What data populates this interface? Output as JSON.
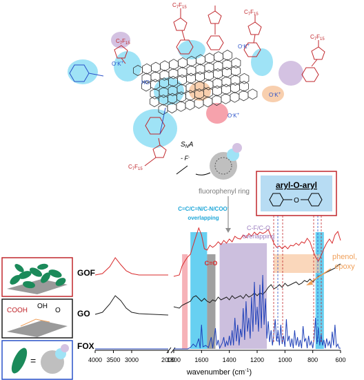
{
  "chart_data": {
    "type": "line",
    "xlabel_main": "wavenumber (cm",
    "xlabel_sup": "-1",
    "xlabel_close": ")",
    "x_ticks_left": [
      4000,
      3500,
      3000,
      2000
    ],
    "x_ticks_right": [
      1800,
      1600,
      1400,
      1200,
      1000,
      800,
      600
    ],
    "series": [
      {
        "name": "GOF",
        "color": "#d8282a"
      },
      {
        "name": "GO",
        "color": "#1a1a1a"
      },
      {
        "name": "FOX",
        "color": "#1d3fb8"
      }
    ],
    "bands": [
      {
        "label": "C=O",
        "from": 1740,
        "to": 1700,
        "color": "#f4a5ab"
      },
      {
        "label": "C=C/C=N/C-N/COO",
        "label_sup": "-",
        "label2": "overlapping",
        "from": 1680,
        "to": 1560,
        "color": "#4cc8ef"
      },
      {
        "label": "",
        "from": 1560,
        "to": 1500,
        "color": "#8f8f8f"
      },
      {
        "label": "C-F/C-O",
        "label2": "overlapping",
        "from": 1470,
        "to": 1130,
        "color": "#c3b4d8"
      },
      {
        "label": "",
        "from": 780,
        "to": 720,
        "color": "#4cc8ef"
      },
      {
        "label": "phenol,",
        "label2": "epoxy",
        "from": 1080,
        "to": 750,
        "color": "#f8c9a4"
      }
    ],
    "annotations": {
      "fluorophenyl": "fluorophenyl ring",
      "arylbox": "aryl-O-aryl",
      "reaction_sn": "S",
      "reaction_n": "N",
      "reaction_a": "A",
      "reaction_f": "- F",
      "reaction_f_sup": "-"
    }
  },
  "molecule": {
    "cf_label": "C",
    "cf_sub1": "7",
    "cf_mid": "F",
    "cf_sub2": "15",
    "k": "K",
    "k_sup": "+",
    "o": "O",
    "o_sup": "-",
    "ho": "HO"
  },
  "legend_panels": {
    "gof_label": "GOF",
    "go_label": "GO",
    "fox_label": "FOX",
    "cooh": "COOH",
    "oh": "OH",
    "o": "O",
    "eq": "="
  }
}
